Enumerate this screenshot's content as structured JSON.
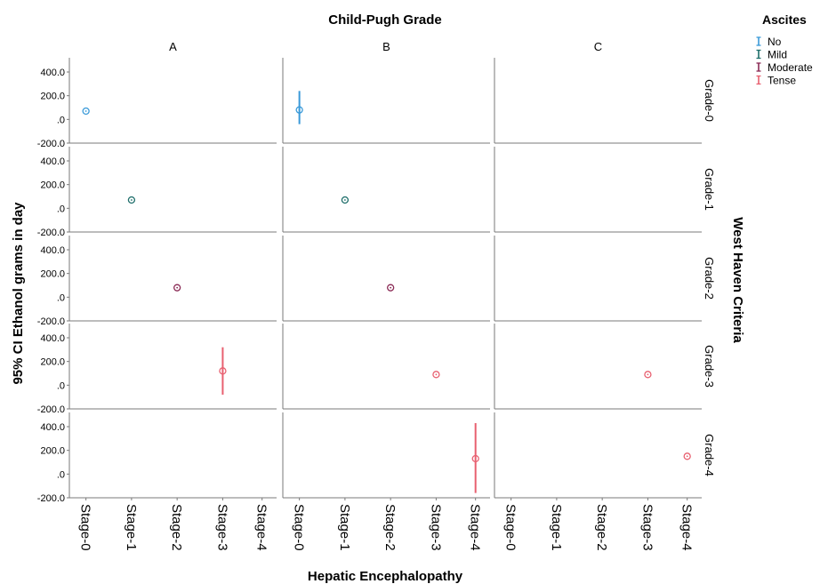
{
  "chart_data": {
    "type": "scatter",
    "title": "Child-Pugh Grade",
    "xlabel": "Hepatic Encephalopathy",
    "ylabel": "95% CI Ethanol grams in day",
    "facet_row_label": "West Haven Criteria",
    "columns": [
      "A",
      "B",
      "C"
    ],
    "rows": [
      "Grade-0",
      "Grade-1",
      "Grade-2",
      "Grade-3",
      "Grade-4"
    ],
    "x_categories": [
      "Stage-0",
      "Stage-1",
      "Stage-2",
      "Stage-3",
      "Stage-4"
    ],
    "y_ticks": [
      400,
      200,
      0,
      -200
    ],
    "y_tick_labels": [
      "400.0",
      "200.0",
      ".0",
      "-200.0"
    ],
    "ylim": [
      -200,
      520
    ],
    "legend": {
      "title": "Ascites",
      "placement": "right",
      "items": [
        {
          "label": "No",
          "color": "#3a9ad9"
        },
        {
          "label": "Mild",
          "color": "#1e6e6a"
        },
        {
          "label": "Moderate",
          "color": "#8a2a55"
        },
        {
          "label": "Tense",
          "color": "#e86070"
        }
      ]
    },
    "points": [
      {
        "col": "A",
        "row": "Grade-0",
        "x": "Stage-0",
        "ascites": "No",
        "y": 70,
        "lo": 70,
        "hi": 70
      },
      {
        "col": "B",
        "row": "Grade-0",
        "x": "Stage-0",
        "ascites": "No",
        "y": 80,
        "lo": -40,
        "hi": 240
      },
      {
        "col": "A",
        "row": "Grade-1",
        "x": "Stage-1",
        "ascites": "Mild",
        "y": 70,
        "lo": 70,
        "hi": 70
      },
      {
        "col": "B",
        "row": "Grade-1",
        "x": "Stage-1",
        "ascites": "Mild",
        "y": 70,
        "lo": 70,
        "hi": 70
      },
      {
        "col": "A",
        "row": "Grade-2",
        "x": "Stage-2",
        "ascites": "Moderate",
        "y": 80,
        "lo": 80,
        "hi": 80
      },
      {
        "col": "B",
        "row": "Grade-2",
        "x": "Stage-2",
        "ascites": "Moderate",
        "y": 80,
        "lo": 80,
        "hi": 80
      },
      {
        "col": "A",
        "row": "Grade-3",
        "x": "Stage-3",
        "ascites": "Tense",
        "y": 120,
        "lo": -80,
        "hi": 320
      },
      {
        "col": "B",
        "row": "Grade-3",
        "x": "Stage-3",
        "ascites": "Tense",
        "y": 90,
        "lo": 90,
        "hi": 90
      },
      {
        "col": "C",
        "row": "Grade-3",
        "x": "Stage-3",
        "ascites": "Tense",
        "y": 90,
        "lo": 90,
        "hi": 90
      },
      {
        "col": "B",
        "row": "Grade-4",
        "x": "Stage-4",
        "ascites": "Tense",
        "y": 130,
        "lo": -160,
        "hi": 430
      },
      {
        "col": "C",
        "row": "Grade-4",
        "x": "Stage-4",
        "ascites": "Tense",
        "y": 150,
        "lo": 150,
        "hi": 150
      }
    ]
  }
}
